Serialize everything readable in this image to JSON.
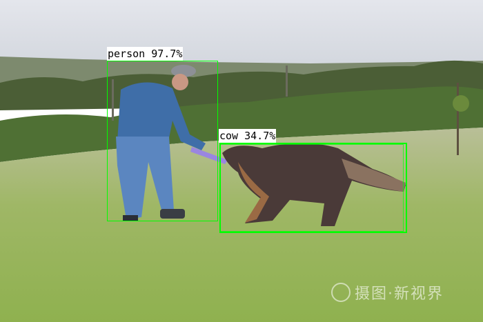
{
  "detections": [
    {
      "label": "person 97.7%",
      "color": "#00ff00"
    },
    {
      "label": "cow 34.7%",
      "color": "#00ff00"
    }
  ],
  "watermark": {
    "text": "摄图·新视界"
  }
}
